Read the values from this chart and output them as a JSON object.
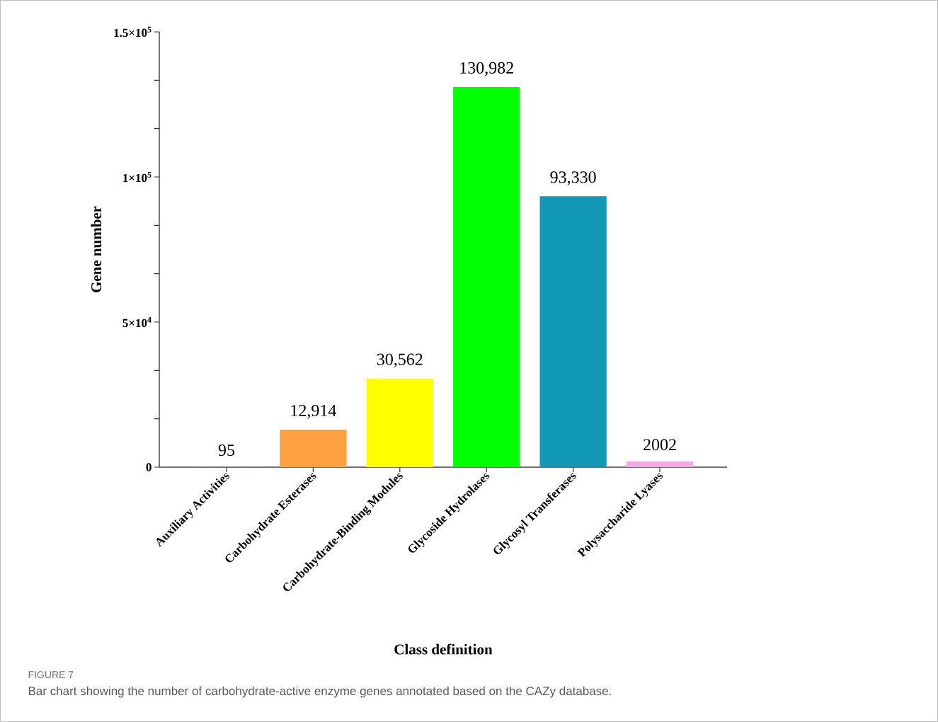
{
  "chart_data": {
    "type": "bar",
    "categories": [
      "Auxiliary Activities",
      "Carbohydrate Esterases",
      "Carbohydrate-Binding Modules",
      "Glycoside Hydrolases",
      "Glycosyl Transferases",
      "Polysaccharide Lyases"
    ],
    "values": [
      95,
      12914,
      30562,
      130982,
      93330,
      2002
    ],
    "colors": [
      "#e05050",
      "#ffa040",
      "#ffff00",
      "#00ff00",
      "#1198b4",
      "#f5a8e6"
    ],
    "value_labels": [
      "95",
      "12,914",
      "30,562",
      "130,982",
      "93,330",
      "2002"
    ],
    "ylim": [
      0,
      150000
    ],
    "yticks": [
      0,
      {
        "value": 16667,
        "label": null
      },
      {
        "value": 33333,
        "label": null
      },
      {
        "value": 50000,
        "label": "5×10$^{4}$"
      },
      {
        "value": 66667,
        "label": null
      },
      {
        "value": 83333,
        "label": null
      },
      {
        "value": 100000,
        "label": "1×10$^{5}$"
      },
      {
        "value": 116667,
        "label": null
      },
      {
        "value": 133333,
        "label": null
      },
      {
        "value": 150000,
        "label": "1.5×10$^{5}$"
      }
    ],
    "xlabel": "Class definition",
    "ylabel": "Gene number",
    "annotations": [
      "FIGURE 7",
      "Bar chart showing the number of carbohydrate-active enzyme genes annotated based on the CAZy database."
    ]
  }
}
